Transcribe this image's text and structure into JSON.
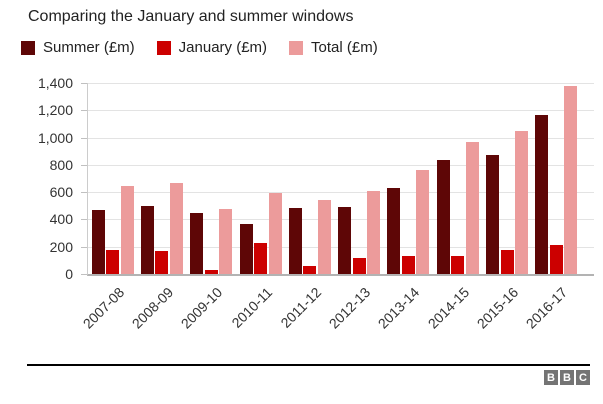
{
  "chart_data": {
    "type": "bar",
    "title": "Comparing the January and summer windows",
    "categories": [
      "2007-08",
      "2008-09",
      "2009-10",
      "2010-11",
      "2011-12",
      "2012-13",
      "2013-14",
      "2014-15",
      "2015-16",
      "2016-17"
    ],
    "series": [
      {
        "name": "Summer (£m)",
        "color": "#5e0606",
        "values": [
          470,
          500,
          450,
          370,
          485,
          490,
          630,
          835,
          870,
          1165
        ]
      },
      {
        "name": "January (£m)",
        "color": "#cc0000",
        "values": [
          175,
          170,
          30,
          225,
          60,
          120,
          130,
          130,
          175,
          215
        ]
      },
      {
        "name": "Total (£m)",
        "color": "#ec9b9b",
        "values": [
          645,
          670,
          480,
          595,
          545,
          610,
          760,
          965,
          1045,
          1380
        ]
      }
    ],
    "ylim": [
      0,
      1400
    ],
    "ytick_step": 200,
    "ytick_labels": [
      "0",
      "200",
      "400",
      "600",
      "800",
      "1,000",
      "1,200",
      "1,400"
    ],
    "grid": true,
    "legend_position": "top-left",
    "xlabel": "",
    "ylabel": ""
  },
  "footer": {
    "logo_letters": [
      "B",
      "B",
      "C"
    ]
  },
  "colors": {
    "background": "#ffffff",
    "summer": "#5e0606",
    "january": "#cc0000",
    "total": "#ec9b9b",
    "gridline": "#e3e3e3",
    "baseline": "#b3b3b3",
    "axis_line": "#cccccc",
    "tick": "#c0c0c0",
    "title_text": "#222222",
    "axis_text": "#333333",
    "divider": "#000000",
    "logo_bg": "#747474",
    "logo_text": "#ffffff"
  }
}
